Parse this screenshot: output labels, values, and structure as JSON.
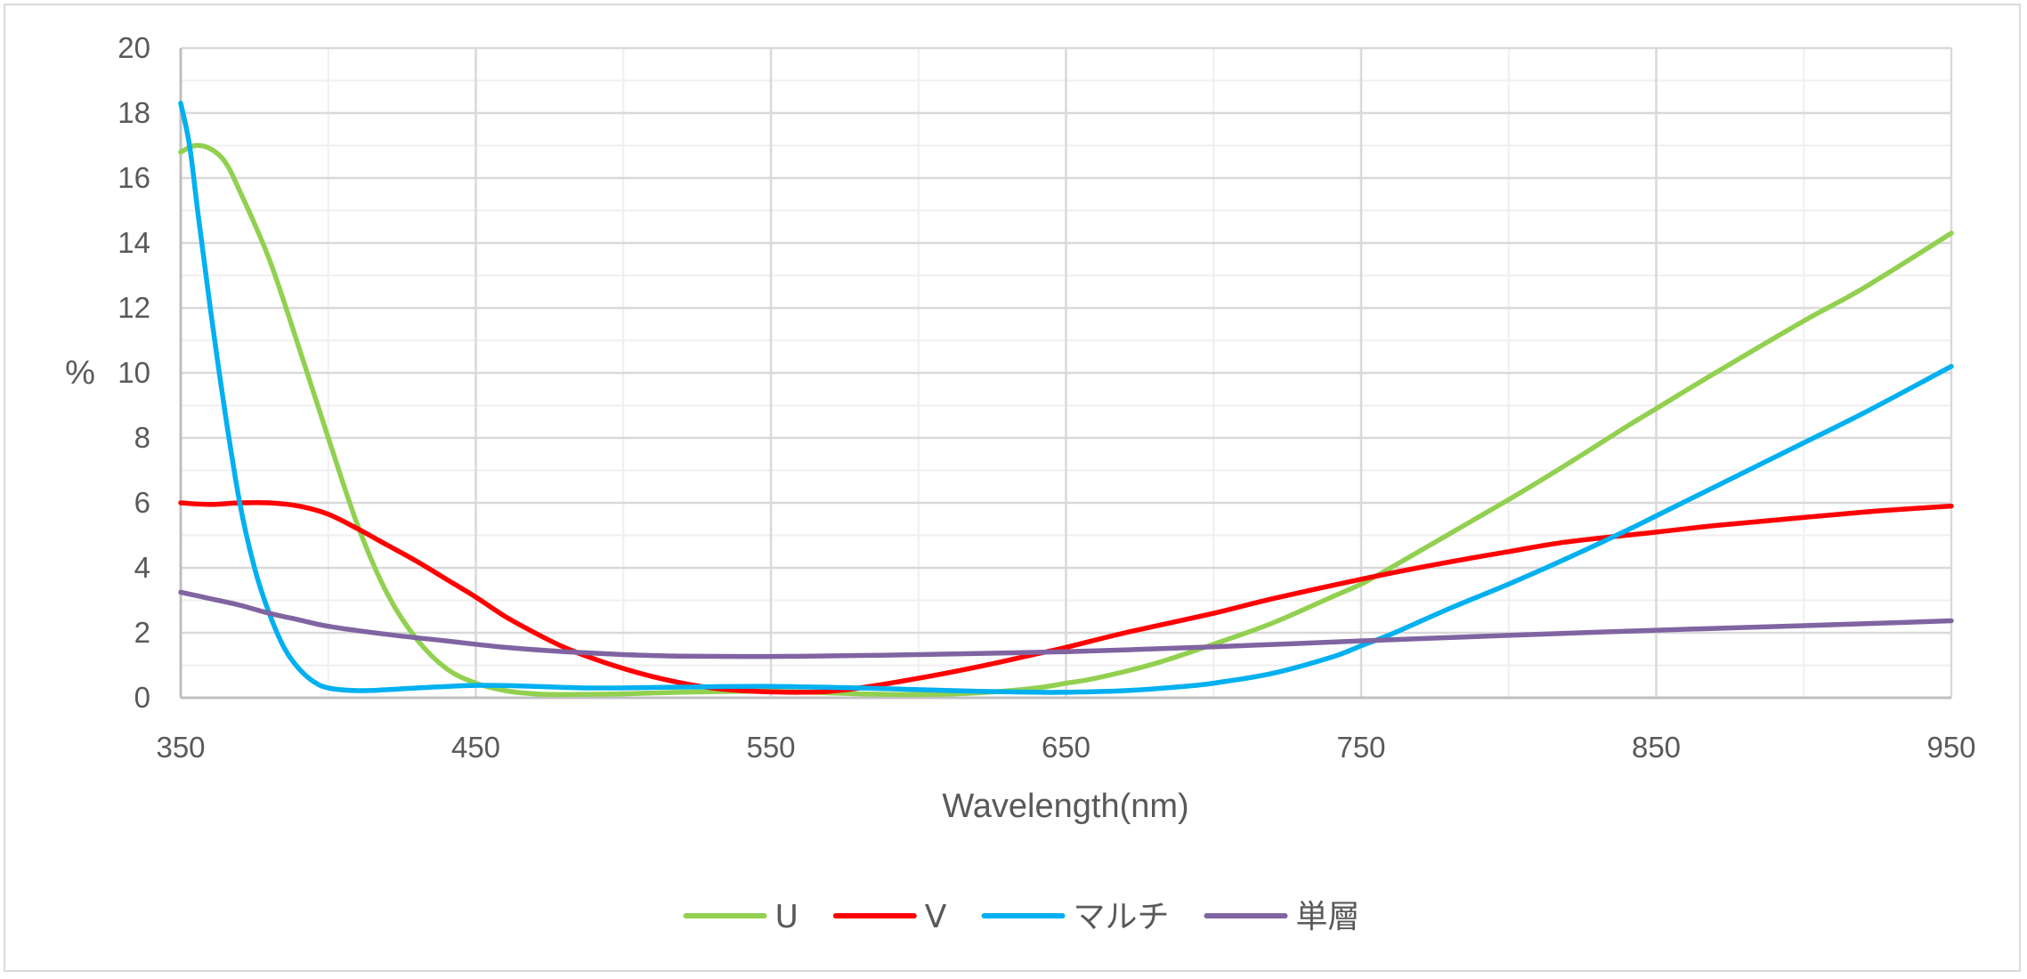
{
  "chart_data": {
    "type": "line",
    "xlabel": "Wavelength(nm)",
    "ylabel": "%",
    "xlim": [
      350,
      950
    ],
    "ylim": [
      0,
      20
    ],
    "x_ticks": [
      350,
      450,
      550,
      650,
      750,
      850,
      950
    ],
    "y_ticks": [
      0,
      2,
      4,
      6,
      8,
      10,
      12,
      14,
      16,
      18,
      20
    ],
    "grid": true,
    "legend_position": "bottom",
    "series": [
      {
        "name": "U",
        "color": "#92d050",
        "points": [
          [
            350,
            16.8
          ],
          [
            355,
            17.0
          ],
          [
            360,
            16.9
          ],
          [
            365,
            16.5
          ],
          [
            370,
            15.6
          ],
          [
            380,
            13.5
          ],
          [
            390,
            10.8
          ],
          [
            400,
            8.0
          ],
          [
            410,
            5.3
          ],
          [
            420,
            3.2
          ],
          [
            430,
            1.8
          ],
          [
            440,
            0.9
          ],
          [
            450,
            0.45
          ],
          [
            460,
            0.22
          ],
          [
            470,
            0.12
          ],
          [
            480,
            0.1
          ],
          [
            500,
            0.12
          ],
          [
            520,
            0.17
          ],
          [
            550,
            0.2
          ],
          [
            580,
            0.12
          ],
          [
            600,
            0.1
          ],
          [
            620,
            0.15
          ],
          [
            640,
            0.3
          ],
          [
            650,
            0.45
          ],
          [
            660,
            0.6
          ],
          [
            680,
            1.05
          ],
          [
            700,
            1.65
          ],
          [
            720,
            2.3
          ],
          [
            740,
            3.1
          ],
          [
            750,
            3.5
          ],
          [
            760,
            4.0
          ],
          [
            780,
            5.05
          ],
          [
            800,
            6.1
          ],
          [
            820,
            7.2
          ],
          [
            840,
            8.35
          ],
          [
            850,
            8.9
          ],
          [
            870,
            10.0
          ],
          [
            900,
            11.6
          ],
          [
            920,
            12.6
          ],
          [
            950,
            14.3
          ]
        ]
      },
      {
        "name": "V",
        "color": "#ff0000",
        "points": [
          [
            350,
            6.0
          ],
          [
            360,
            5.95
          ],
          [
            370,
            6.0
          ],
          [
            380,
            6.0
          ],
          [
            390,
            5.9
          ],
          [
            400,
            5.65
          ],
          [
            410,
            5.2
          ],
          [
            420,
            4.7
          ],
          [
            430,
            4.2
          ],
          [
            440,
            3.65
          ],
          [
            450,
            3.1
          ],
          [
            460,
            2.5
          ],
          [
            470,
            2.0
          ],
          [
            480,
            1.55
          ],
          [
            490,
            1.2
          ],
          [
            500,
            0.9
          ],
          [
            510,
            0.65
          ],
          [
            520,
            0.45
          ],
          [
            530,
            0.3
          ],
          [
            540,
            0.22
          ],
          [
            550,
            0.18
          ],
          [
            560,
            0.17
          ],
          [
            570,
            0.2
          ],
          [
            580,
            0.3
          ],
          [
            600,
            0.6
          ],
          [
            620,
            0.95
          ],
          [
            640,
            1.35
          ],
          [
            650,
            1.55
          ],
          [
            670,
            2.0
          ],
          [
            700,
            2.6
          ],
          [
            720,
            3.05
          ],
          [
            750,
            3.65
          ],
          [
            775,
            4.1
          ],
          [
            800,
            4.5
          ],
          [
            820,
            4.8
          ],
          [
            850,
            5.1
          ],
          [
            870,
            5.3
          ],
          [
            900,
            5.55
          ],
          [
            925,
            5.75
          ],
          [
            950,
            5.9
          ]
        ]
      },
      {
        "name": "マルチ",
        "color": "#00b0f0",
        "points": [
          [
            350,
            18.3
          ],
          [
            353,
            17.0
          ],
          [
            356,
            14.8
          ],
          [
            360,
            12.0
          ],
          [
            365,
            8.8
          ],
          [
            370,
            6.0
          ],
          [
            375,
            4.0
          ],
          [
            380,
            2.6
          ],
          [
            385,
            1.55
          ],
          [
            390,
            0.9
          ],
          [
            395,
            0.5
          ],
          [
            400,
            0.3
          ],
          [
            410,
            0.22
          ],
          [
            420,
            0.25
          ],
          [
            430,
            0.3
          ],
          [
            450,
            0.38
          ],
          [
            470,
            0.35
          ],
          [
            490,
            0.3
          ],
          [
            520,
            0.33
          ],
          [
            550,
            0.35
          ],
          [
            580,
            0.3
          ],
          [
            600,
            0.25
          ],
          [
            620,
            0.2
          ],
          [
            640,
            0.17
          ],
          [
            650,
            0.17
          ],
          [
            670,
            0.22
          ],
          [
            690,
            0.35
          ],
          [
            700,
            0.45
          ],
          [
            720,
            0.75
          ],
          [
            740,
            1.25
          ],
          [
            750,
            1.6
          ],
          [
            760,
            1.95
          ],
          [
            780,
            2.75
          ],
          [
            800,
            3.5
          ],
          [
            820,
            4.3
          ],
          [
            840,
            5.15
          ],
          [
            850,
            5.6
          ],
          [
            870,
            6.5
          ],
          [
            900,
            7.85
          ],
          [
            920,
            8.75
          ],
          [
            950,
            10.2
          ]
        ]
      },
      {
        "name": "単層",
        "color": "#8064a2",
        "points": [
          [
            350,
            3.25
          ],
          [
            360,
            3.05
          ],
          [
            370,
            2.85
          ],
          [
            380,
            2.6
          ],
          [
            390,
            2.4
          ],
          [
            400,
            2.2
          ],
          [
            420,
            1.95
          ],
          [
            440,
            1.75
          ],
          [
            460,
            1.55
          ],
          [
            480,
            1.42
          ],
          [
            500,
            1.33
          ],
          [
            520,
            1.28
          ],
          [
            550,
            1.27
          ],
          [
            580,
            1.3
          ],
          [
            600,
            1.33
          ],
          [
            650,
            1.42
          ],
          [
            700,
            1.57
          ],
          [
            750,
            1.75
          ],
          [
            800,
            1.92
          ],
          [
            850,
            2.08
          ],
          [
            900,
            2.22
          ],
          [
            950,
            2.37
          ]
        ]
      }
    ]
  }
}
